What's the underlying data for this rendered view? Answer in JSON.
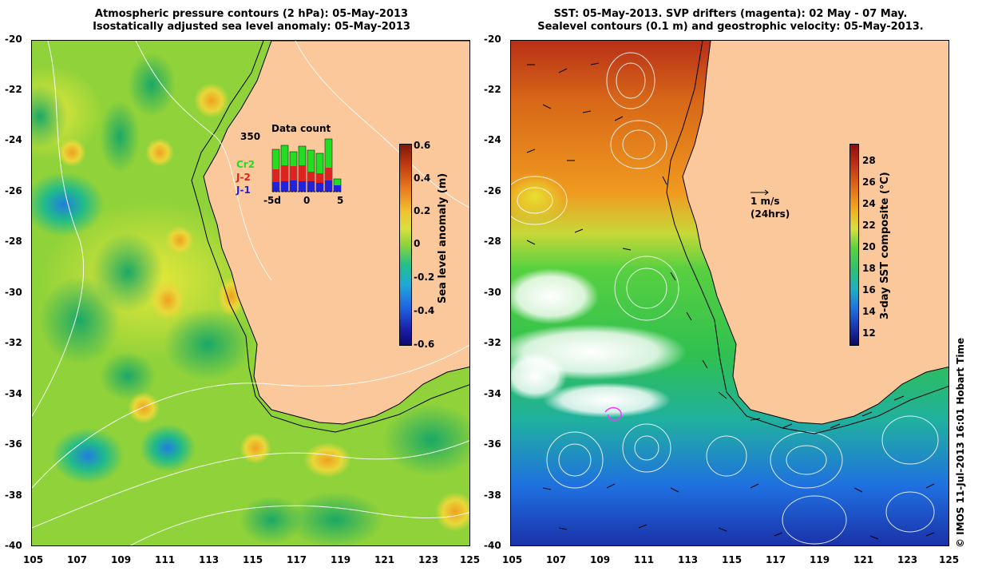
{
  "left_panel": {
    "title_line1": "Atmospheric pressure contours (2 hPa): 05-May-2013",
    "title_line2": "Isostatically adjusted sea level anomaly: 05-May-2013",
    "colorbar_title": "Sea level anomaly (m)",
    "colorbar_ticks": [
      "0.6",
      "0.4",
      "0.2",
      "0",
      "-0.2",
      "-0.4",
      "-0.6"
    ],
    "inset": {
      "title": "Data count",
      "max_label": "350",
      "legend": [
        {
          "label": "Cr2",
          "color": "#22cc22"
        },
        {
          "label": "J-2",
          "color": "#dd2222"
        },
        {
          "label": "J-1",
          "color": "#2222dd"
        }
      ],
      "x_ticks": [
        "-5d",
        "0",
        "5"
      ]
    }
  },
  "right_panel": {
    "title_line1": "SST: 05-May-2013. SVP drifters (magenta): 02 May - 07 May.",
    "title_line2": "Sealevel contours (0.1 m) and geostrophic velocity: 05-May-2013.",
    "colorbar_title": "3-day SST composite (°C)",
    "colorbar_ticks": [
      "28",
      "26",
      "24",
      "22",
      "20",
      "18",
      "16",
      "14",
      "12"
    ],
    "velocity_key": "1 m/s",
    "velocity_key_sub": "(24hrs)"
  },
  "y_ticks": [
    "-20",
    "-22",
    "-24",
    "-26",
    "-28",
    "-30",
    "-32",
    "-34",
    "-36",
    "-38",
    "-40"
  ],
  "x_ticks": [
    "105",
    "107",
    "109",
    "111",
    "113",
    "115",
    "117",
    "119",
    "121",
    "123",
    "125"
  ],
  "credit": "© IMOS 11-Jul-2013 16:01 Hobart Time",
  "colors": {
    "land": "#fac89a",
    "background": "#ffffff"
  }
}
